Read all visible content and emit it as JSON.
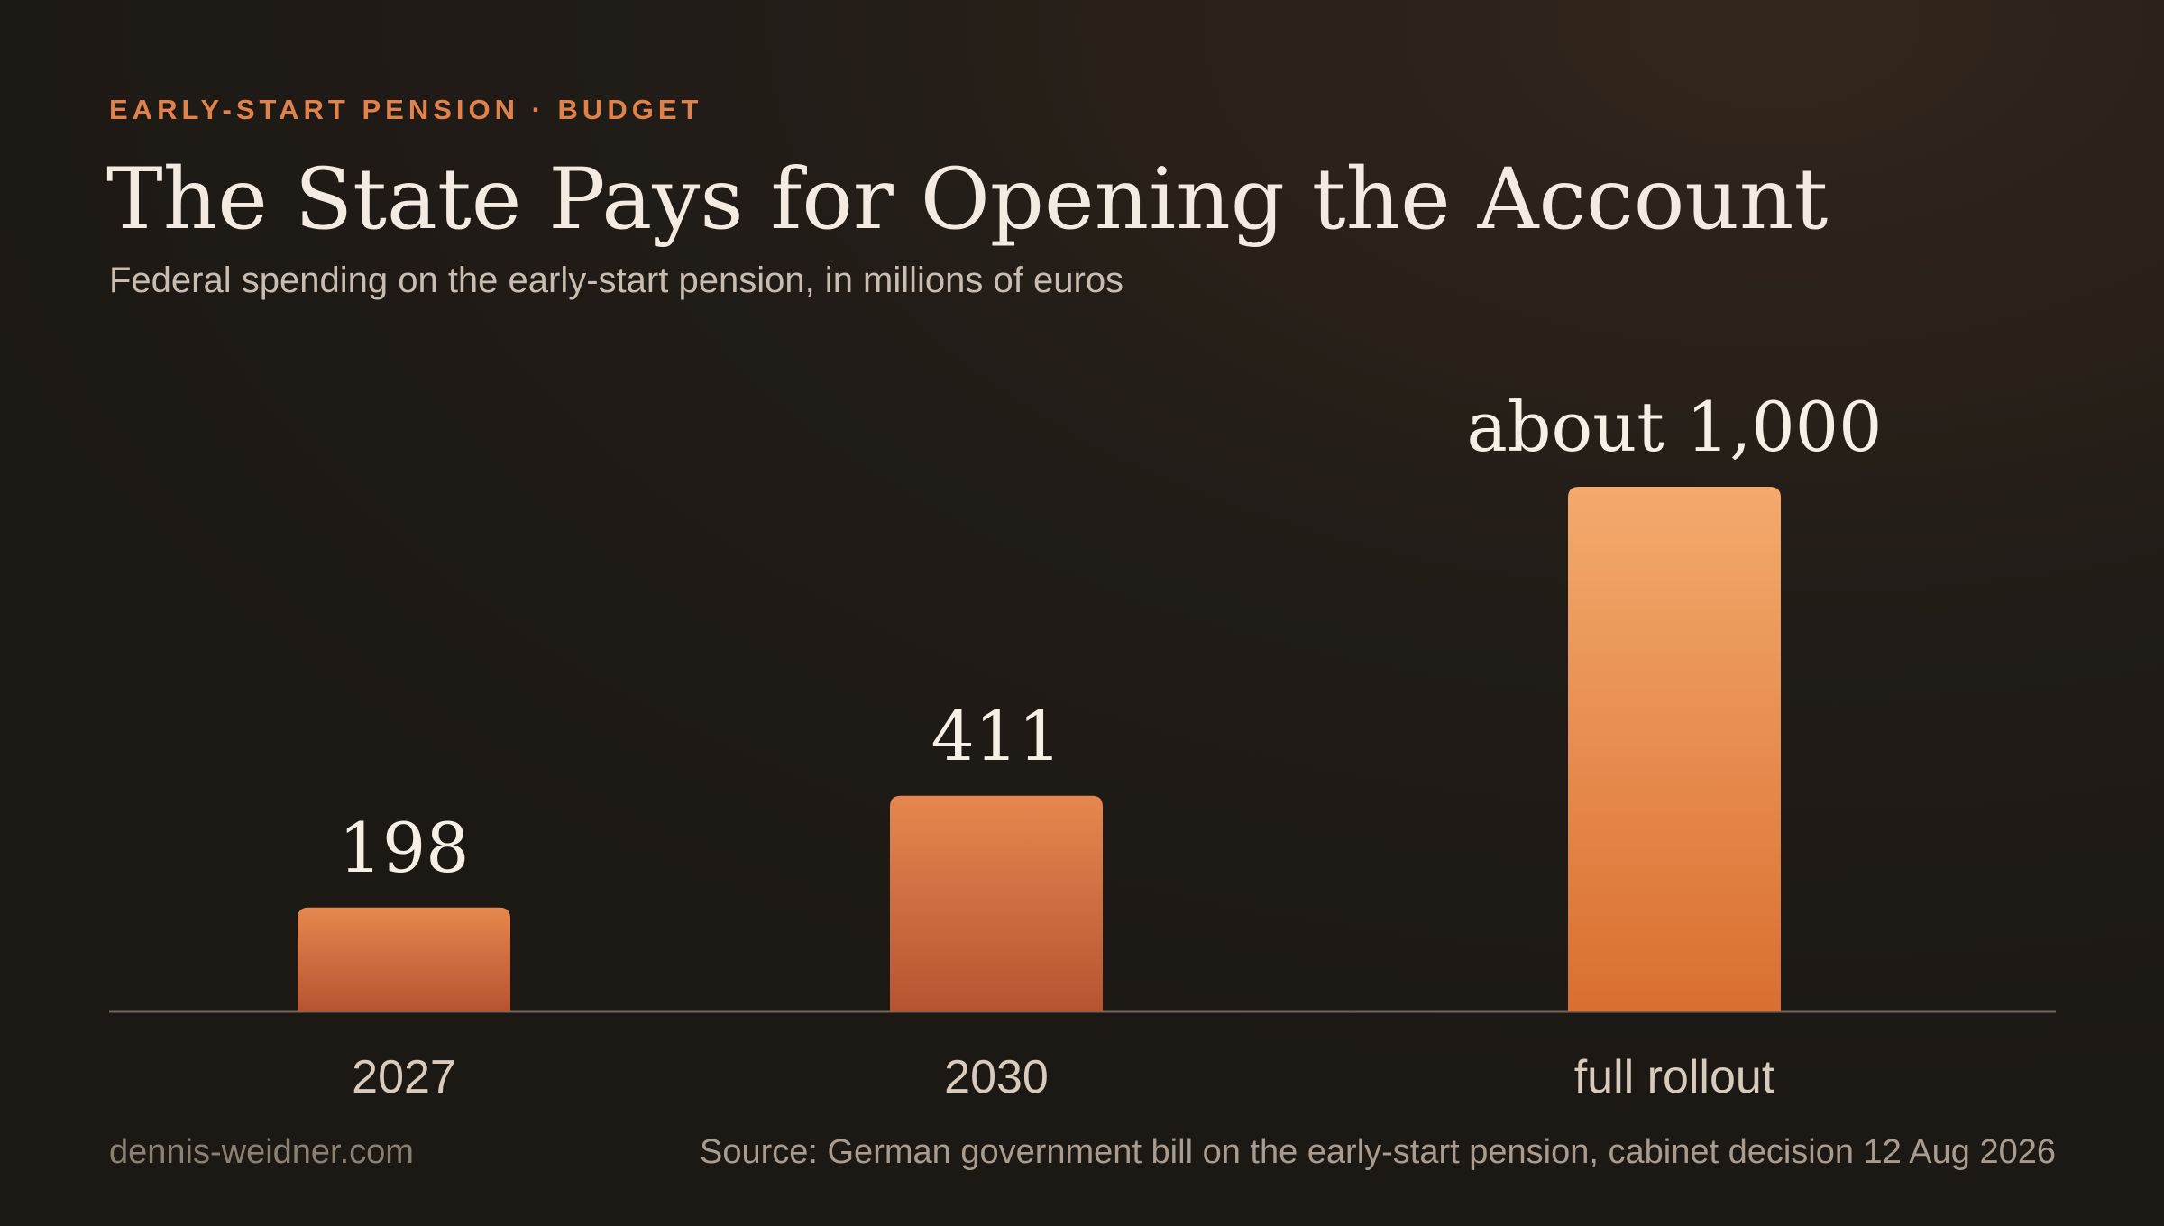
{
  "chart_data": {
    "type": "bar",
    "kicker": "EARLY-START PENSION · BUDGET",
    "title": "The State Pays for Opening the Account",
    "subtitle": "Federal spending on the early-start pension, in millions of euros",
    "categories": [
      "2027",
      "2030",
      "full rollout"
    ],
    "values": [
      198,
      411,
      1000
    ],
    "value_labels": [
      "198",
      "411",
      "about 1,000"
    ],
    "footer_left": "dennis-weidner.com",
    "source": "Source: German government bill on the early-start pension, cabinet decision 12 Aug 2026"
  }
}
